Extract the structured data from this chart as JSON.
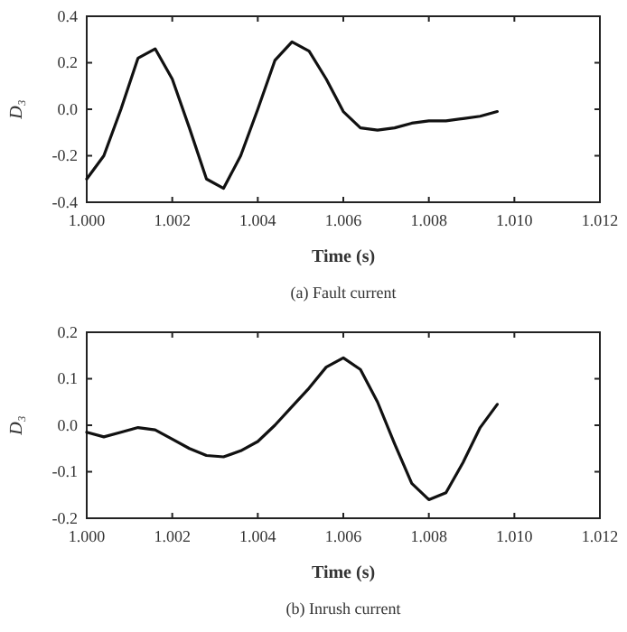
{
  "chart_data": [
    {
      "type": "line",
      "title": "(a) Fault current",
      "xlabel": "Time (s)",
      "ylabel": "D₃",
      "x": [
        1.0,
        1.0004,
        1.0008,
        1.0012,
        1.0016,
        1.002,
        1.0024,
        1.0028,
        1.0032,
        1.0036,
        1.004,
        1.0044,
        1.0048,
        1.0052,
        1.0056,
        1.006,
        1.0064,
        1.0068,
        1.0072,
        1.0076,
        1.008,
        1.0084,
        1.0088,
        1.0092,
        1.0096
      ],
      "series": [
        {
          "color": "#111111",
          "values": [
            -0.3,
            -0.2,
            0.0,
            0.22,
            0.26,
            0.13,
            -0.08,
            -0.3,
            -0.34,
            -0.2,
            0.0,
            0.21,
            0.29,
            0.25,
            0.13,
            -0.01,
            -0.08,
            -0.09,
            -0.08,
            -0.06,
            -0.05,
            -0.05,
            -0.04,
            -0.03,
            -0.01
          ]
        }
      ],
      "xlim": [
        1.0,
        1.012
      ],
      "xticks": [
        {
          "value": 1.0,
          "label": "1.000"
        },
        {
          "value": 1.002,
          "label": "1.002"
        },
        {
          "value": 1.004,
          "label": "1.004"
        },
        {
          "value": 1.006,
          "label": "1.006"
        },
        {
          "value": 1.008,
          "label": "1.008"
        },
        {
          "value": 1.01,
          "label": "1.010"
        },
        {
          "value": 1.012,
          "label": "1.012"
        }
      ],
      "ylim": [
        -0.4,
        0.4
      ],
      "yticks": [
        -0.4,
        -0.2,
        {
          "value": 0,
          "label": "0.0"
        },
        0.2,
        0.4
      ],
      "grid": false,
      "marker": "none",
      "line_style": "solid"
    },
    {
      "type": "line",
      "title": "(b) Inrush current",
      "xlabel": "Time (s)",
      "ylabel": "D₃",
      "x": [
        1.0,
        1.0004,
        1.0008,
        1.0012,
        1.0016,
        1.002,
        1.0024,
        1.0028,
        1.0032,
        1.0036,
        1.004,
        1.0044,
        1.0048,
        1.0052,
        1.0056,
        1.006,
        1.0064,
        1.0068,
        1.0072,
        1.0076,
        1.008,
        1.0084,
        1.0088,
        1.0092,
        1.0096
      ],
      "series": [
        {
          "color": "#111111",
          "values": [
            -0.015,
            -0.025,
            -0.015,
            -0.005,
            -0.01,
            -0.03,
            -0.05,
            -0.065,
            -0.068,
            -0.055,
            -0.035,
            0.0,
            0.04,
            0.08,
            0.125,
            0.145,
            0.12,
            0.05,
            -0.04,
            -0.125,
            -0.16,
            -0.145,
            -0.08,
            -0.005,
            0.045
          ]
        }
      ],
      "xlim": [
        1.0,
        1.012
      ],
      "xticks": [
        {
          "value": 1.0,
          "label": "1.000"
        },
        {
          "value": 1.002,
          "label": "1.002"
        },
        {
          "value": 1.004,
          "label": "1.004"
        },
        {
          "value": 1.006,
          "label": "1.006"
        },
        {
          "value": 1.008,
          "label": "1.008"
        },
        {
          "value": 1.01,
          "label": "1.010"
        },
        {
          "value": 1.012,
          "label": "1.012"
        }
      ],
      "ylim": [
        -0.2,
        0.2
      ],
      "yticks": [
        -0.2,
        -0.1,
        {
          "value": 0,
          "label": "0.0"
        },
        0.1,
        0.2
      ],
      "grid": false,
      "marker": "none",
      "line_style": "solid"
    }
  ]
}
